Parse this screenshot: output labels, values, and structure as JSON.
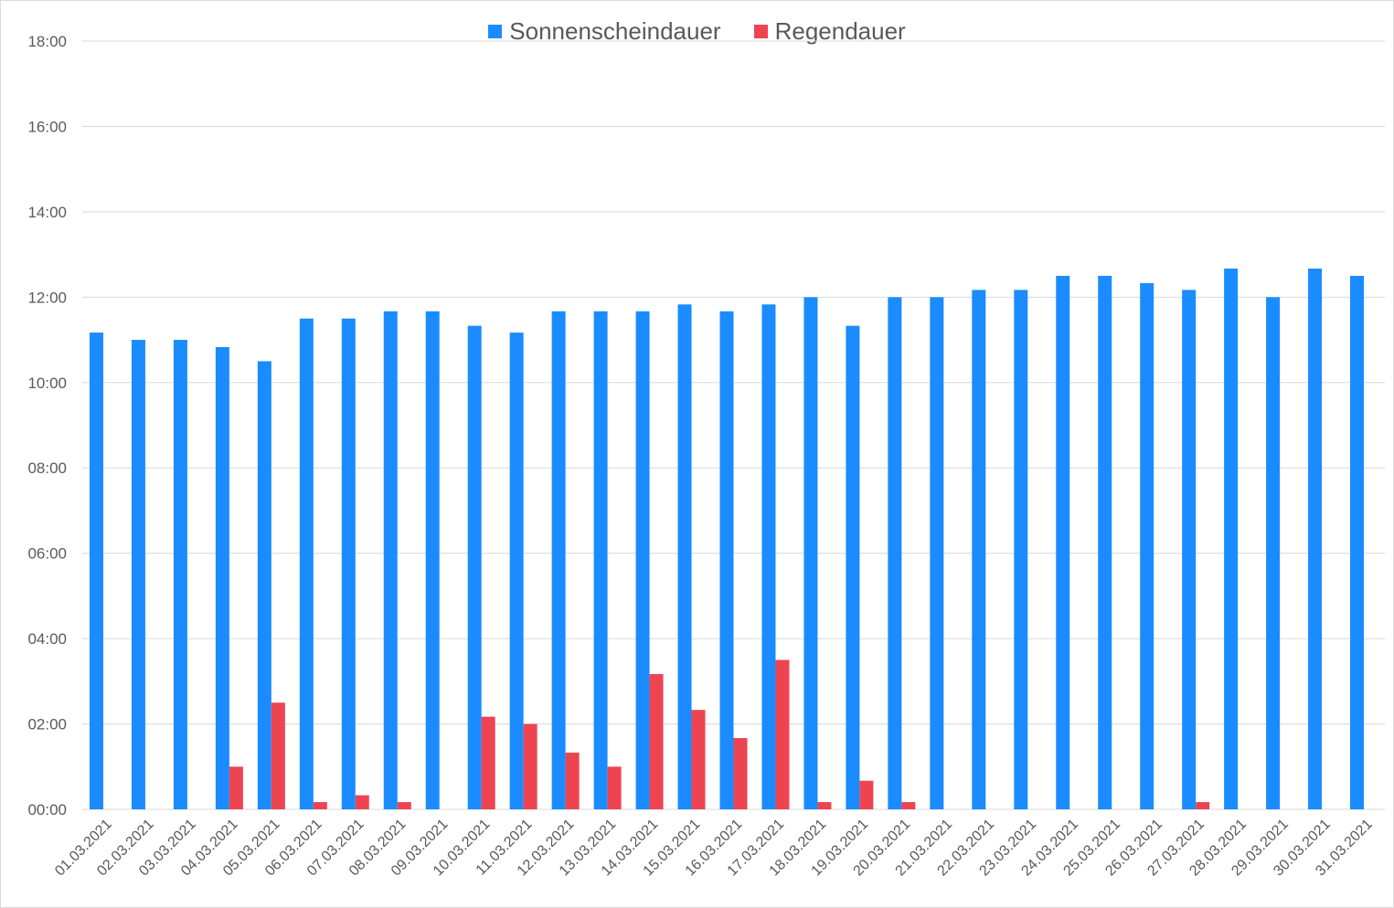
{
  "chart_data": {
    "type": "bar",
    "categories": [
      "01.03.2021",
      "02.03.2021",
      "03.03.2021",
      "04.03.2021",
      "05.03.2021",
      "06.03.2021",
      "07.03.2021",
      "08.03.2021",
      "09.03.2021",
      "10.03.2021",
      "11.03.2021",
      "12.03.2021",
      "13.03.2021",
      "14.03.2021",
      "15.03.2021",
      "16.03.2021",
      "17.03.2021",
      "18.03.2021",
      "19.03.2021",
      "20.03.2021",
      "21.03.2021",
      "22.03.2021",
      "23.03.2021",
      "24.03.2021",
      "25.03.2021",
      "26.03.2021",
      "27.03.2021",
      "28.03.2021",
      "29.03.2021",
      "30.03.2021",
      "31.03.2021"
    ],
    "series": [
      {
        "name": "Sonnenscheindauer",
        "color": "#1a8cff",
        "values": [
          11.17,
          11.0,
          11.0,
          10.83,
          10.5,
          11.5,
          11.5,
          11.67,
          11.67,
          11.33,
          11.17,
          11.67,
          11.67,
          11.67,
          11.83,
          11.67,
          11.83,
          12.0,
          11.33,
          12.0,
          12.0,
          12.17,
          12.17,
          12.5,
          12.5,
          12.33,
          12.17,
          12.67,
          12.0,
          12.67,
          12.5
        ]
      },
      {
        "name": "Regendauer",
        "color": "#ee4451",
        "values": [
          0,
          0,
          0,
          1.0,
          2.5,
          0.17,
          0.33,
          0.17,
          0,
          2.17,
          2.0,
          1.33,
          1.0,
          3.17,
          2.33,
          1.67,
          3.5,
          0.17,
          0.67,
          0.17,
          0,
          0,
          0,
          0,
          0,
          0,
          0.17,
          0,
          0,
          0,
          0
        ]
      }
    ],
    "ylim": [
      0,
      18
    ],
    "ytick_labels": [
      "00:00",
      "02:00",
      "04:00",
      "06:00",
      "08:00",
      "10:00",
      "12:00",
      "14:00",
      "16:00",
      "18:00"
    ],
    "grid": true,
    "legend_position": "top-center"
  }
}
